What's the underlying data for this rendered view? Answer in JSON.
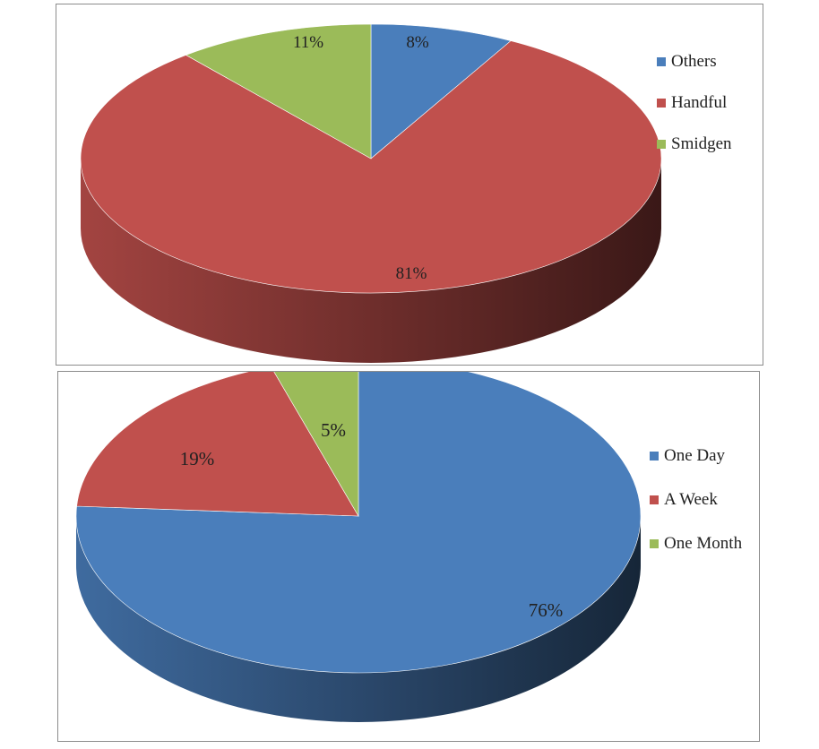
{
  "chart_data": [
    {
      "type": "pie",
      "style": "3d",
      "legend_position": "right",
      "categories": [
        "Others",
        "Handful",
        "Smidgen"
      ],
      "values": [
        8,
        81,
        11
      ],
      "data_labels": [
        "8%",
        "81%",
        "11%"
      ],
      "colors": [
        "#4a7ebb",
        "#c0504d",
        "#9bbb59"
      ]
    },
    {
      "type": "pie",
      "style": "3d",
      "legend_position": "right",
      "categories": [
        "One Day",
        "A Week",
        "One Month"
      ],
      "values": [
        76,
        19,
        5
      ],
      "data_labels": [
        "76%",
        "19%",
        "5%"
      ],
      "colors": [
        "#4a7ebb",
        "#c0504d",
        "#9bbb59"
      ]
    }
  ]
}
